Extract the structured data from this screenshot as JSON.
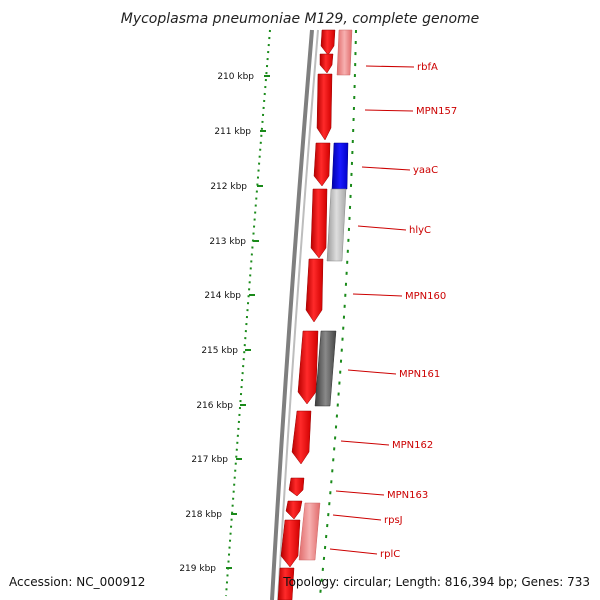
{
  "header": {
    "title": "Mycoplasma pneumoniae M129, complete genome"
  },
  "scale": {
    "ticks": [
      "210 kbp",
      "211 kbp",
      "212 kbp",
      "213 kbp",
      "214 kbp",
      "215 kbp",
      "216 kbp",
      "217 kbp",
      "218 kbp",
      "219 kbp"
    ]
  },
  "genes": {
    "labels": [
      "rbfA",
      "MPN157",
      "yaaC",
      "hlyC",
      "MPN160",
      "MPN161",
      "MPN162",
      "MPN163",
      "rpsJ",
      "rplC"
    ]
  },
  "footer": {
    "accession": "Accession: NC_000912",
    "topology": "Topology: circular; Length: 816,394 bp; Genes: 733"
  },
  "colors": {
    "forward_strand": "#ff0000",
    "reverse_highlight": "#0000ff",
    "gray_light": "#bdbdbd",
    "gray_dark": "#666666",
    "pink": "#ee8888",
    "label": "#cc0000",
    "tick": "#1a8a1a",
    "backbone": "#7f7f7f"
  }
}
